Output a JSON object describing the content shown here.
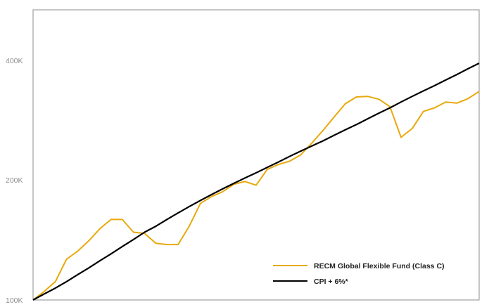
{
  "chart_data": {
    "type": "line",
    "title": "",
    "xlabel": "",
    "ylabel": "",
    "y_scale": "log",
    "ylim": [
      100000,
      520000
    ],
    "yticks": [
      {
        "value": 100000,
        "label": "100K"
      },
      {
        "value": 200000,
        "label": "200K"
      },
      {
        "value": 400000,
        "label": "400K"
      }
    ],
    "xlim": [
      0,
      200
    ],
    "grid": false,
    "legend_position": "bottom-right",
    "series": [
      {
        "name": "RECM Global Flexible Fund (Class C)",
        "color": "#E8A90C",
        "x": [
          0,
          5,
          10,
          15,
          20,
          25,
          30,
          35,
          40,
          45,
          50,
          55,
          60,
          65,
          70,
          75,
          80,
          85,
          90,
          95,
          100,
          105,
          110,
          115,
          120,
          125,
          130,
          135,
          140,
          145,
          150,
          155,
          160,
          165,
          170,
          175,
          180,
          185,
          190,
          195,
          200
        ],
        "values": [
          100000,
          105000,
          111000,
          126000,
          132000,
          140000,
          150000,
          158000,
          158000,
          147000,
          146000,
          138000,
          137000,
          137000,
          152000,
          173000,
          180000,
          185000,
          193000,
          196000,
          192000,
          210000,
          216000,
          220000,
          228000,
          244000,
          262000,
          283000,
          305000,
          317000,
          318000,
          313000,
          300000,
          252000,
          265000,
          292000,
          298000,
          308000,
          306000,
          314000,
          327000
        ]
      },
      {
        "name": "CPI + 6%*",
        "color": "#000000",
        "x": [
          0,
          5,
          10,
          15,
          20,
          25,
          30,
          35,
          40,
          45,
          50,
          55,
          60,
          65,
          70,
          75,
          80,
          85,
          90,
          95,
          100,
          105,
          110,
          115,
          120,
          125,
          130,
          135,
          140,
          145,
          150,
          155,
          160,
          165,
          170,
          175,
          180,
          185,
          190,
          195,
          200
        ],
        "values": [
          100000,
          103500,
          107000,
          111000,
          115500,
          120000,
          125000,
          130000,
          135500,
          141000,
          147000,
          152000,
          158000,
          164000,
          170000,
          176000,
          182000,
          188000,
          194000,
          200000,
          206000,
          212500,
          219000,
          226000,
          233000,
          240000,
          247000,
          255000,
          263000,
          271000,
          280000,
          289000,
          298000,
          308000,
          318000,
          328000,
          338000,
          349000,
          360000,
          372000,
          384000
        ]
      }
    ]
  }
}
